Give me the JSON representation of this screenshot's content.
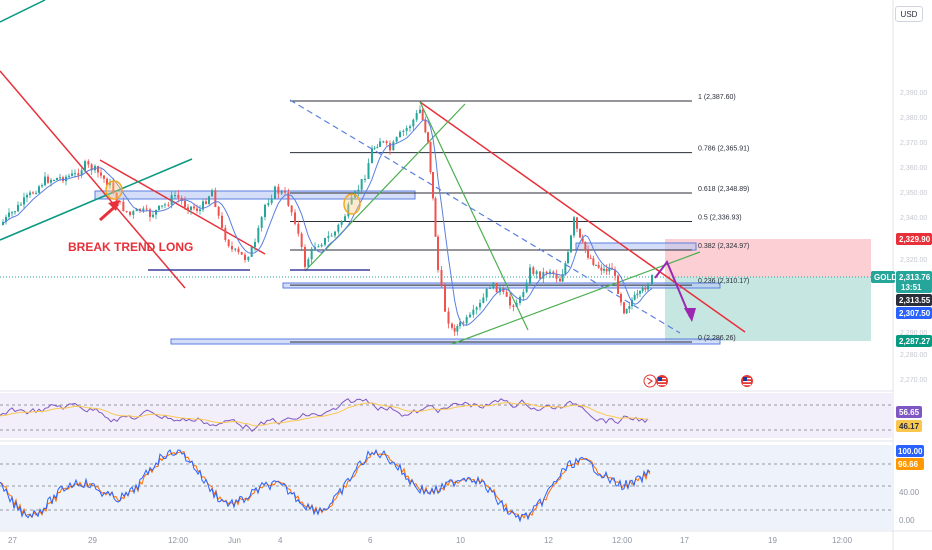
{
  "currency_button": "USD",
  "symbol": "GOLD",
  "annotation": "BREAK TREND LONG",
  "fib_levels": [
    {
      "label": "1 (2,387.60)",
      "price": 2387.6
    },
    {
      "label": "0.786 (2,365.91)",
      "price": 2365.91
    },
    {
      "label": "0.618 (2,348.89)",
      "price": 2348.89
    },
    {
      "label": "0.5 (2,336.93)",
      "price": 2336.93
    },
    {
      "label": "0.382 (2,324.97)",
      "price": 2324.97
    },
    {
      "label": "0.236 (2,310.17)",
      "price": 2310.17
    },
    {
      "label": "0 (2,286.26)",
      "price": 2286.26
    }
  ],
  "price_badges": {
    "red": "2,329.90",
    "gold_label": "GOLD",
    "gold_price": "2,313.76",
    "countdown": "13:51",
    "dark": "2,313.55",
    "blue": "2,307.50",
    "green": "2,287.27"
  },
  "rsi_badges": {
    "upper": "56.65",
    "lower": "46.17"
  },
  "stoch_badges": {
    "upper": "100.00",
    "lower": "96.66"
  },
  "stoch_axis": {
    "mid": "40.00",
    "zero": "0.00"
  },
  "x_axis_labels": [
    "27",
    "29",
    "12:00",
    "Jun",
    "4",
    "6",
    "10",
    "12",
    "12:00",
    "17",
    "19",
    "12:00"
  ],
  "colors": {
    "up": "#26a69a",
    "down": "#ef5350",
    "trend_red": "#e8303a",
    "trend_green": "#089981",
    "fib_line": "#2a2e39",
    "zone_blue": "#5b7fe0",
    "target_red": "#f7a8ae",
    "target_green": "#7fc8bd",
    "arrow_purple": "#9c27b0",
    "rsi_line": "#7e57c2",
    "stoch_k": "#2962ff",
    "stoch_d": "#ff6d00"
  },
  "icons": [
    "flag-us-icon",
    "flag-us-icon",
    "flag-us-icon"
  ]
}
